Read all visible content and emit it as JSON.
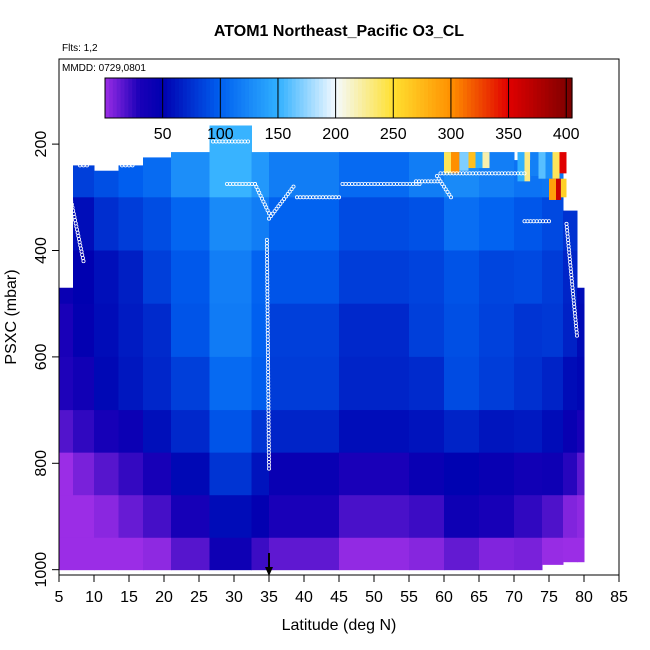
{
  "chart_data": {
    "type": "heatmap",
    "title": "ATOM1 Northeast_Pacific O3_CL",
    "flights_label": "Flts: 1,2",
    "mmdd_label": "MMDD: 0729,0801",
    "xlabel": "Latitude (deg N)",
    "ylabel": "PSXC (mbar)",
    "xlim": [
      5,
      85
    ],
    "ylim": [
      1010,
      40
    ],
    "y_reversed": true,
    "x_ticks": [
      5,
      10,
      15,
      20,
      25,
      30,
      35,
      40,
      45,
      50,
      55,
      60,
      65,
      70,
      75,
      80,
      85
    ],
    "y_ticks": [
      200,
      400,
      600,
      800,
      1000
    ],
    "colorbar": {
      "range": [
        0,
        405
      ],
      "tick_values": [
        50,
        100,
        150,
        200,
        250,
        300,
        350,
        400
      ],
      "tick_labels": [
        "50",
        "100",
        "150",
        "200",
        "250",
        "300",
        "350",
        "400"
      ],
      "stops": [
        {
          "v": 0,
          "c": "#9b2de6"
        },
        {
          "v": 30,
          "c": "#1a00b8"
        },
        {
          "v": 50,
          "c": "#0000b0"
        },
        {
          "v": 100,
          "c": "#0060f0"
        },
        {
          "v": 150,
          "c": "#30b0ff"
        },
        {
          "v": 200,
          "c": "#f4faff"
        },
        {
          "v": 250,
          "c": "#ffe030"
        },
        {
          "v": 300,
          "c": "#ff9000"
        },
        {
          "v": 350,
          "c": "#e00000"
        },
        {
          "v": 405,
          "c": "#7a0000"
        }
      ]
    },
    "columns": [
      {
        "lat": [
          5.0,
          7.0
        ],
        "p_top": 470,
        "p_bot": 1000,
        "base": 40
      },
      {
        "lat": [
          7.0,
          10.0
        ],
        "p_top": 240,
        "p_bot": 1000,
        "base": 50
      },
      {
        "lat": [
          10.0,
          13.5
        ],
        "p_top": 250,
        "p_bot": 1000,
        "base": 60
      },
      {
        "lat": [
          13.5,
          17.0
        ],
        "p_top": 240,
        "p_bot": 1000,
        "base": 70
      },
      {
        "lat": [
          17.0,
          21.0
        ],
        "p_top": 225,
        "p_bot": 1000,
        "base": 80
      },
      {
        "lat": [
          21.0,
          26.5
        ],
        "p_top": 215,
        "p_bot": 1000,
        "base": 95
      },
      {
        "lat": [
          26.5,
          32.5
        ],
        "p_top": 165,
        "p_bot": 1000,
        "base": 120
      },
      {
        "lat": [
          32.5,
          35.0
        ],
        "p_top": 215,
        "p_bot": 1000,
        "base": 105
      },
      {
        "lat": [
          35.0,
          45.0
        ],
        "p_top": 215,
        "p_bot": 1000,
        "base": 90
      },
      {
        "lat": [
          45.0,
          55.0
        ],
        "p_top": 215,
        "p_bot": 1000,
        "base": 80
      },
      {
        "lat": [
          55.0,
          60.0
        ],
        "p_top": 215,
        "p_bot": 1000,
        "base": 85
      },
      {
        "lat": [
          60.0,
          65.0
        ],
        "p_top": 215,
        "p_bot": 1000,
        "base": 95
      },
      {
        "lat": [
          65.0,
          70.0
        ],
        "p_top": 215,
        "p_bot": 1000,
        "base": 90
      },
      {
        "lat": [
          70.0,
          74.0
        ],
        "p_top": 230,
        "p_bot": 1000,
        "base": 85
      },
      {
        "lat": [
          74.0,
          77.0
        ],
        "p_top": 240,
        "p_bot": 990,
        "base": 80
      },
      {
        "lat": [
          77.0,
          79.0
        ],
        "p_top": 325,
        "p_bot": 985,
        "base": 70
      },
      {
        "lat": [
          79.0,
          80.0
        ],
        "p_top": 470,
        "p_bot": 985,
        "base": 60
      }
    ],
    "pressure_levels": [
      {
        "p": [
          0,
          300
        ],
        "add": 30
      },
      {
        "p": [
          300,
          400
        ],
        "add": 10
      },
      {
        "p": [
          400,
          500
        ],
        "add": 0
      },
      {
        "p": [
          500,
          600
        ],
        "add": -5
      },
      {
        "p": [
          600,
          700
        ],
        "add": -10
      },
      {
        "p": [
          700,
          780
        ],
        "add": -25
      },
      {
        "p": [
          780,
          860
        ],
        "add": -45
      },
      {
        "p": [
          860,
          940
        ],
        "add": -60
      },
      {
        "p": [
          940,
          1010
        ],
        "add": -80
      }
    ],
    "stratospheric_patches": [
      {
        "lat": [
          60.0,
          61.0
        ],
        "p": [
          215,
          255
        ],
        "value": 240
      },
      {
        "lat": [
          61.0,
          62.2
        ],
        "p": [
          215,
          255
        ],
        "value": 300
      },
      {
        "lat": [
          62.2,
          63.5
        ],
        "p": [
          215,
          250
        ],
        "value": 170
      },
      {
        "lat": [
          63.5,
          64.5
        ],
        "p": [
          215,
          245
        ],
        "value": 270
      },
      {
        "lat": [
          64.5,
          65.5
        ],
        "p": [
          215,
          245
        ],
        "value": 150
      },
      {
        "lat": [
          65.5,
          66.5
        ],
        "p": [
          215,
          245
        ],
        "value": 220
      },
      {
        "lat": [
          70.5,
          71.5
        ],
        "p": [
          215,
          270
        ],
        "value": 150
      },
      {
        "lat": [
          71.5,
          72.3
        ],
        "p": [
          215,
          270
        ],
        "value": 230
      },
      {
        "lat": [
          72.3,
          73.5
        ],
        "p": [
          215,
          260
        ],
        "value": 120
      },
      {
        "lat": [
          73.5,
          74.5
        ],
        "p": [
          215,
          265
        ],
        "value": 160
      },
      {
        "lat": [
          74.5,
          75.5
        ],
        "p": [
          215,
          265
        ],
        "value": 130
      },
      {
        "lat": [
          75.5,
          76.5
        ],
        "p": [
          215,
          265
        ],
        "value": 240
      },
      {
        "lat": [
          76.5,
          77.5
        ],
        "p": [
          215,
          255
        ],
        "value": 350
      },
      {
        "lat": [
          75.0,
          76.0
        ],
        "p": [
          265,
          305
        ],
        "value": 290
      },
      {
        "lat": [
          76.0,
          76.7
        ],
        "p": [
          265,
          305
        ],
        "value": 360
      },
      {
        "lat": [
          76.7,
          77.5
        ],
        "p": [
          265,
          300
        ],
        "value": 260
      }
    ],
    "flight_tracks": [
      {
        "lat": [
          27.0,
          32.0
        ],
        "p": [
          195,
          195
        ]
      },
      {
        "lat": [
          29.0,
          33.0
        ],
        "p": [
          275,
          275
        ]
      },
      {
        "lat": [
          39.0,
          45.0
        ],
        "p": [
          300,
          300
        ]
      },
      {
        "lat": [
          45.5,
          56.5
        ],
        "p": [
          275,
          275
        ]
      },
      {
        "lat": [
          56.0,
          59.5
        ],
        "p": [
          270,
          270
        ]
      },
      {
        "lat": [
          59.5,
          71.5
        ],
        "p": [
          255,
          255
        ]
      },
      {
        "lat": [
          71.5,
          75.0
        ],
        "p": [
          345,
          345
        ]
      },
      {
        "lat": [
          8.0,
          9.0
        ],
        "p": [
          240,
          240
        ]
      },
      {
        "lat": [
          14.0,
          15.5
        ],
        "p": [
          240,
          240
        ]
      },
      {
        "lat": [
          35.0,
          38.5
        ],
        "p": [
          340,
          280
        ]
      },
      {
        "lat": [
          33.0,
          35.0
        ],
        "p": [
          275,
          330
        ]
      },
      {
        "lat": [
          34.7,
          35.0
        ],
        "p": [
          380,
          810
        ]
      },
      {
        "lat": [
          6.0,
          8.5
        ],
        "p": [
          260,
          420
        ]
      },
      {
        "lat": [
          59.0,
          61.0
        ],
        "p": [
          260,
          300
        ]
      },
      {
        "lat": [
          77.5,
          79.0
        ],
        "p": [
          350,
          560
        ]
      }
    ],
    "marker": {
      "lat": 35,
      "p": 1010
    }
  }
}
